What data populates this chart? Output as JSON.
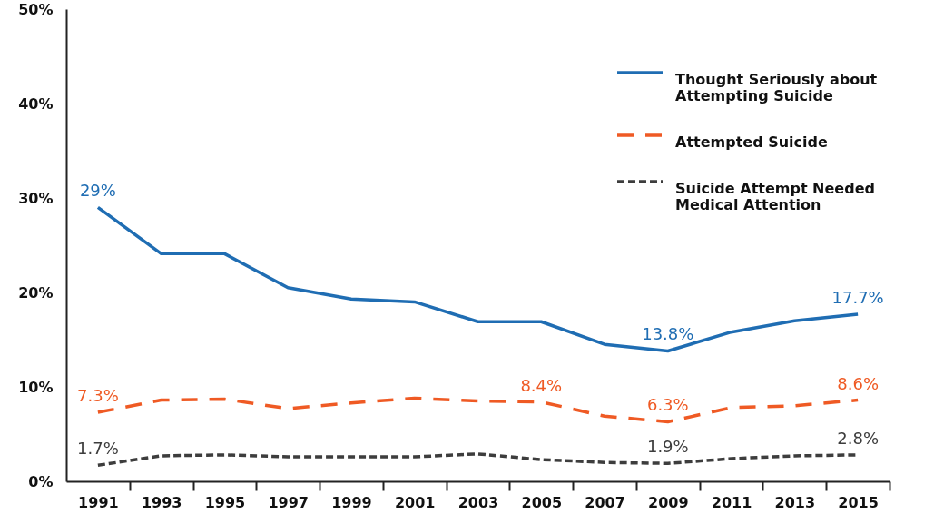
{
  "chart_data": {
    "type": "line",
    "x": [
      1991,
      1993,
      1995,
      1997,
      1999,
      2001,
      2003,
      2005,
      2007,
      2009,
      2011,
      2013,
      2015
    ],
    "xlim": [
      1990,
      2016
    ],
    "xticks": [
      1991,
      {
        "value": 1992,
        "label": null
      },
      1993,
      {
        "value": 1994,
        "label": null
      },
      1995,
      {
        "value": 1996,
        "label": null
      },
      1997,
      {
        "value": 1998,
        "label": null
      },
      1999,
      {
        "value": 2000,
        "label": null
      },
      2001,
      {
        "value": 2002,
        "label": null
      },
      2003,
      {
        "value": 2004,
        "label": null
      },
      2005,
      {
        "value": 2006,
        "label": null
      },
      2007,
      {
        "value": 2008,
        "label": null
      },
      2009,
      {
        "value": 2010,
        "label": null
      },
      2011,
      {
        "value": 2012,
        "label": null
      },
      2013,
      {
        "value": 2014,
        "label": null
      },
      2015,
      {
        "value": 2016,
        "label": null
      }
    ],
    "ylim": [
      0,
      50
    ],
    "yticks": [
      {
        "value": 0,
        "label": "0%"
      },
      {
        "value": 10,
        "label": "10%"
      },
      {
        "value": 20,
        "label": "20%"
      },
      {
        "value": 30,
        "label": "30%"
      },
      {
        "value": 40,
        "label": "40%"
      },
      {
        "value": 50,
        "label": "50%"
      }
    ],
    "grid": false,
    "legend": "top right",
    "series": [
      {
        "name": "Thought Seriously about Attempting Suicide",
        "color": "#1f6db3",
        "line_style": "solid",
        "values": [
          29,
          24.1,
          24.1,
          20.5,
          19.3,
          19.0,
          16.9,
          16.9,
          14.5,
          13.8,
          15.8,
          17.0,
          17.7
        ],
        "value_labels": [
          "29%",
          null,
          null,
          null,
          null,
          null,
          null,
          null,
          null,
          "13.8%",
          null,
          null,
          "17.7%"
        ]
      },
      {
        "name": "Attempted Suicide",
        "color": "#ef5a24",
        "line_style": "dashed",
        "values": [
          7.3,
          8.6,
          8.7,
          7.7,
          8.3,
          8.8,
          8.5,
          8.4,
          6.9,
          6.3,
          7.8,
          8.0,
          8.6
        ],
        "value_labels": [
          "7.3%",
          null,
          null,
          null,
          null,
          null,
          null,
          "8.4%",
          null,
          "6.3%",
          null,
          null,
          "8.6%"
        ]
      },
      {
        "name": "Suicide Attempt Needed Medical Attention",
        "color": "#3d3d3d",
        "line_style": "dashed",
        "values": [
          1.7,
          2.7,
          2.8,
          2.6,
          2.6,
          2.6,
          2.9,
          2.3,
          2.0,
          1.9,
          2.4,
          2.7,
          2.8
        ],
        "value_labels": [
          "1.7%",
          null,
          null,
          null,
          null,
          null,
          null,
          null,
          null,
          "1.9%",
          null,
          null,
          "2.8%"
        ]
      }
    ]
  }
}
